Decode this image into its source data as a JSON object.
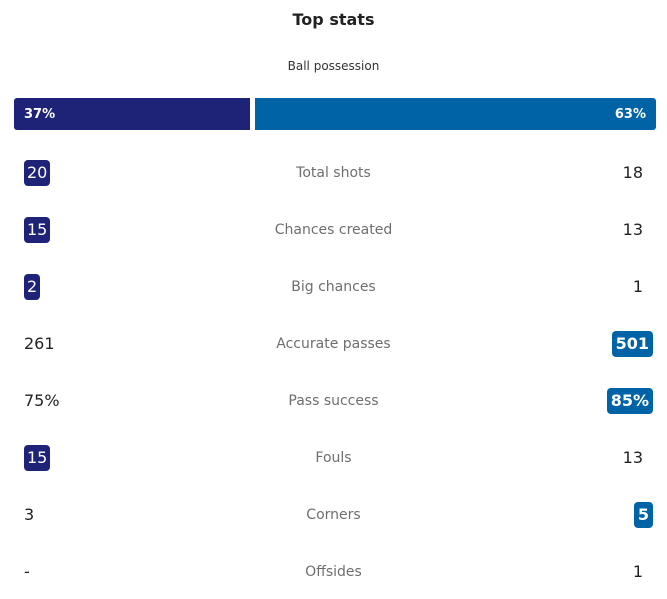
{
  "section_title": "Top stats",
  "possession": {
    "label": "Ball possession",
    "home": "37%",
    "away": "63%",
    "home_fraction": 0.37
  },
  "colors": {
    "home": "#1e2378",
    "away": "#0063a6"
  },
  "stats": [
    {
      "label": "Total shots",
      "home": "20",
      "away": "18",
      "leader": "home"
    },
    {
      "label": "Chances created",
      "home": "15",
      "away": "13",
      "leader": "home"
    },
    {
      "label": "Big chances",
      "home": "2",
      "away": "1",
      "leader": "home"
    },
    {
      "label": "Accurate passes",
      "home": "261",
      "away": "501",
      "leader": "away"
    },
    {
      "label": "Pass success",
      "home": "75%",
      "away": "85%",
      "leader": "away"
    },
    {
      "label": "Fouls",
      "home": "15",
      "away": "13",
      "leader": "home"
    },
    {
      "label": "Corners",
      "home": "3",
      "away": "5",
      "leader": "away"
    },
    {
      "label": "Offsides",
      "home": "-",
      "away": "1",
      "leader": "none"
    }
  ]
}
